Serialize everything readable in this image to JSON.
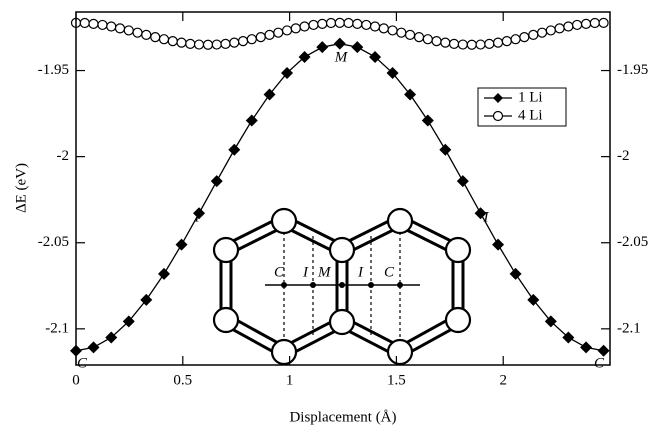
{
  "chart_data": {
    "type": "line",
    "xlabel": "Displacement (Å)",
    "ylabel": "ΔE (eV)",
    "xlim": [
      0,
      2.5
    ],
    "ylim": [
      -2.121,
      -1.916
    ],
    "xticks": [
      0,
      0.5,
      1,
      1.5,
      2
    ],
    "yticks": [
      -1.95,
      -2,
      -2.05,
      -2.1
    ],
    "legend": "upper right",
    "annotations": [
      "M",
      "I",
      "I",
      "C",
      "C"
    ],
    "inset_labels": [
      "C",
      "I",
      "M",
      "I",
      "C"
    ],
    "series": [
      {
        "name": "1 Li",
        "color": "#000000",
        "marker": "diamond",
        "x": [
          0,
          0.082,
          0.165,
          0.247,
          0.329,
          0.412,
          0.494,
          0.576,
          0.659,
          0.741,
          0.823,
          0.906,
          0.988,
          1.07,
          1.153,
          1.235,
          1.317,
          1.4,
          1.482,
          1.564,
          1.647,
          1.729,
          1.811,
          1.894,
          1.976,
          2.058,
          2.141,
          2.223,
          2.305,
          2.388,
          2.47
        ],
        "values": [
          -2.1127,
          -2.1108,
          -2.105,
          -2.0957,
          -2.0832,
          -2.0681,
          -2.0511,
          -2.0329,
          -2.0142,
          -1.996,
          -1.979,
          -1.9639,
          -1.9514,
          -1.9421,
          -1.9364,
          -1.9344,
          -1.9364,
          -1.9421,
          -1.9514,
          -1.9639,
          -1.979,
          -1.996,
          -2.0142,
          -2.0329,
          -2.0511,
          -2.0681,
          -2.0832,
          -2.0957,
          -2.105,
          -2.1108,
          -2.1127
        ]
      },
      {
        "name": "4 Li",
        "color": "#000000",
        "marker": "circle",
        "x": [
          0,
          0.041,
          0.082,
          0.124,
          0.165,
          0.206,
          0.247,
          0.288,
          0.329,
          0.371,
          0.412,
          0.453,
          0.494,
          0.535,
          0.576,
          0.618,
          0.659,
          0.7,
          0.741,
          0.782,
          0.823,
          0.865,
          0.906,
          0.947,
          0.988,
          1.029,
          1.07,
          1.112,
          1.153,
          1.194,
          1.235,
          1.276,
          1.317,
          1.359,
          1.4,
          1.441,
          1.482,
          1.523,
          1.564,
          1.606,
          1.647,
          1.688,
          1.729,
          1.77,
          1.811,
          1.853,
          1.894,
          1.935,
          1.976,
          2.017,
          2.058,
          2.099,
          2.141,
          2.182,
          2.223,
          2.264,
          2.305,
          2.346,
          2.388,
          2.429,
          2.47
        ],
        "values": [
          -1.9223,
          -1.9224,
          -1.9229,
          -1.9235,
          -1.9244,
          -1.9255,
          -1.9267,
          -1.928,
          -1.9293,
          -1.9306,
          -1.9318,
          -1.9329,
          -1.9338,
          -1.9345,
          -1.9349,
          -1.935,
          -1.9349,
          -1.9345,
          -1.9338,
          -1.9329,
          -1.9318,
          -1.9306,
          -1.9293,
          -1.928,
          -1.9267,
          -1.9255,
          -1.9244,
          -1.9235,
          -1.9229,
          -1.9224,
          -1.9223,
          -1.9224,
          -1.9229,
          -1.9235,
          -1.9244,
          -1.9255,
          -1.9267,
          -1.928,
          -1.9293,
          -1.9306,
          -1.9318,
          -1.9329,
          -1.9338,
          -1.9345,
          -1.9349,
          -1.935,
          -1.9349,
          -1.9345,
          -1.9338,
          -1.9329,
          -1.9318,
          -1.9306,
          -1.9293,
          -1.928,
          -1.9267,
          -1.9255,
          -1.9244,
          -1.9235,
          -1.9229,
          -1.9224,
          -1.9223
        ]
      }
    ]
  }
}
